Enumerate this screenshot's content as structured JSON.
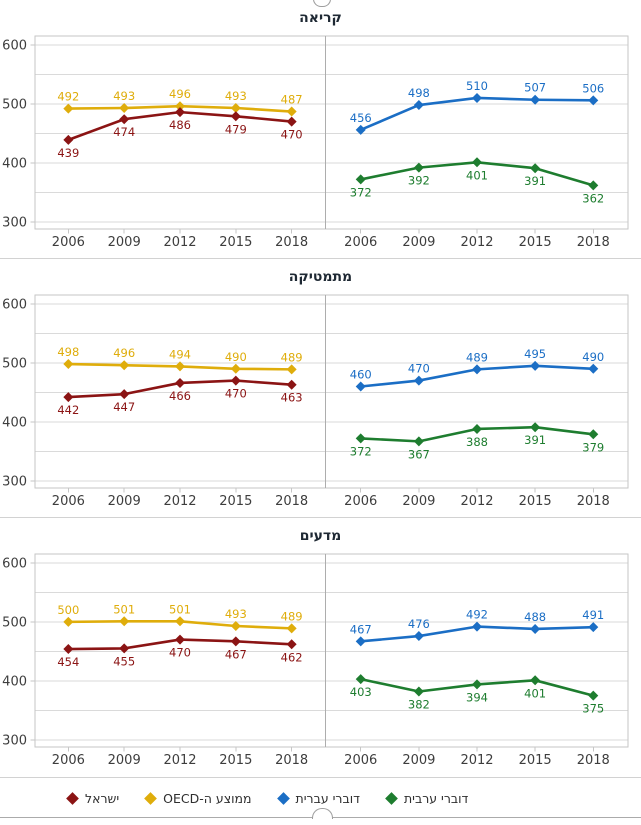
{
  "colors": {
    "israel": "#8B1414",
    "oecd": "#DFAD0B",
    "hebrew_speakers": "#1B6EC5",
    "arabic_speakers": "#1E7D2F",
    "grid_line": "#DADADA",
    "plot_border": "#C6C6C6",
    "panel_divider": "#ADADAD",
    "axis_text": "#3D3D3D",
    "title_text": "#1E2833",
    "separator": "#D2D2D2"
  },
  "axis": {
    "years": [
      "2006",
      "2009",
      "2012",
      "2015",
      "2018"
    ],
    "y_ticks": [
      600,
      500,
      400,
      300
    ],
    "y_gridlines": [
      300,
      350,
      400,
      450,
      500,
      550,
      600
    ]
  },
  "legend": {
    "items": [
      {
        "label": "ישראל",
        "color_key": "israel"
      },
      {
        "label": "ממוצע ה-OECD",
        "color_key": "oecd"
      },
      {
        "label": "דוברי עברית",
        "color_key": "hebrew_speakers"
      },
      {
        "label": "דוברי ערבית",
        "color_key": "arabic_speakers"
      }
    ]
  },
  "chart_data": [
    {
      "type": "line",
      "title": "קריאה",
      "x": [
        "2006",
        "2009",
        "2012",
        "2015",
        "2018"
      ],
      "ylim": [
        300,
        600
      ],
      "grid": true,
      "panels": [
        {
          "side": "left",
          "series": [
            {
              "name": "ממוצע ה-OECD",
              "color_key": "oecd",
              "label_position": "above",
              "values": [
                492,
                493,
                496,
                493,
                487
              ]
            },
            {
              "name": "ישראל",
              "color_key": "israel",
              "label_position": "below",
              "values": [
                439,
                474,
                486,
                479,
                470
              ]
            }
          ]
        },
        {
          "side": "right",
          "series": [
            {
              "name": "דוברי עברית",
              "color_key": "hebrew_speakers",
              "label_position": "above",
              "values": [
                456,
                498,
                510,
                507,
                506
              ]
            },
            {
              "name": "דוברי ערבית",
              "color_key": "arabic_speakers",
              "label_position": "below",
              "values": [
                372,
                392,
                401,
                391,
                362
              ]
            }
          ]
        }
      ]
    },
    {
      "type": "line",
      "title": "מתמטיקה",
      "x": [
        "2006",
        "2009",
        "2012",
        "2015",
        "2018"
      ],
      "ylim": [
        300,
        600
      ],
      "grid": true,
      "panels": [
        {
          "side": "left",
          "series": [
            {
              "name": "ממוצע ה-OECD",
              "color_key": "oecd",
              "label_position": "above",
              "values": [
                498,
                496,
                494,
                490,
                489
              ]
            },
            {
              "name": "ישראל",
              "color_key": "israel",
              "label_position": "below",
              "values": [
                442,
                447,
                466,
                470,
                463
              ]
            }
          ]
        },
        {
          "side": "right",
          "series": [
            {
              "name": "דוברי עברית",
              "color_key": "hebrew_speakers",
              "label_position": "above",
              "values": [
                460,
                470,
                489,
                495,
                490
              ]
            },
            {
              "name": "דוברי ערבית",
              "color_key": "arabic_speakers",
              "label_position": "below",
              "values": [
                372,
                367,
                388,
                391,
                379
              ]
            }
          ]
        }
      ]
    },
    {
      "type": "line",
      "title": "מדעים",
      "x": [
        "2006",
        "2009",
        "2012",
        "2015",
        "2018"
      ],
      "ylim": [
        300,
        600
      ],
      "grid": true,
      "panels": [
        {
          "side": "left",
          "series": [
            {
              "name": "ממוצע ה-OECD",
              "color_key": "oecd",
              "label_position": "above",
              "values": [
                500,
                501,
                501,
                493,
                489
              ]
            },
            {
              "name": "ישראל",
              "color_key": "israel",
              "label_position": "below",
              "values": [
                454,
                455,
                470,
                467,
                462
              ]
            }
          ]
        },
        {
          "side": "right",
          "series": [
            {
              "name": "דוברי עברית",
              "color_key": "hebrew_speakers",
              "label_position": "above",
              "values": [
                467,
                476,
                492,
                488,
                491
              ]
            },
            {
              "name": "דוברי ערבית",
              "color_key": "arabic_speakers",
              "label_position": "below",
              "values": [
                403,
                382,
                394,
                401,
                375
              ]
            }
          ]
        }
      ]
    }
  ]
}
